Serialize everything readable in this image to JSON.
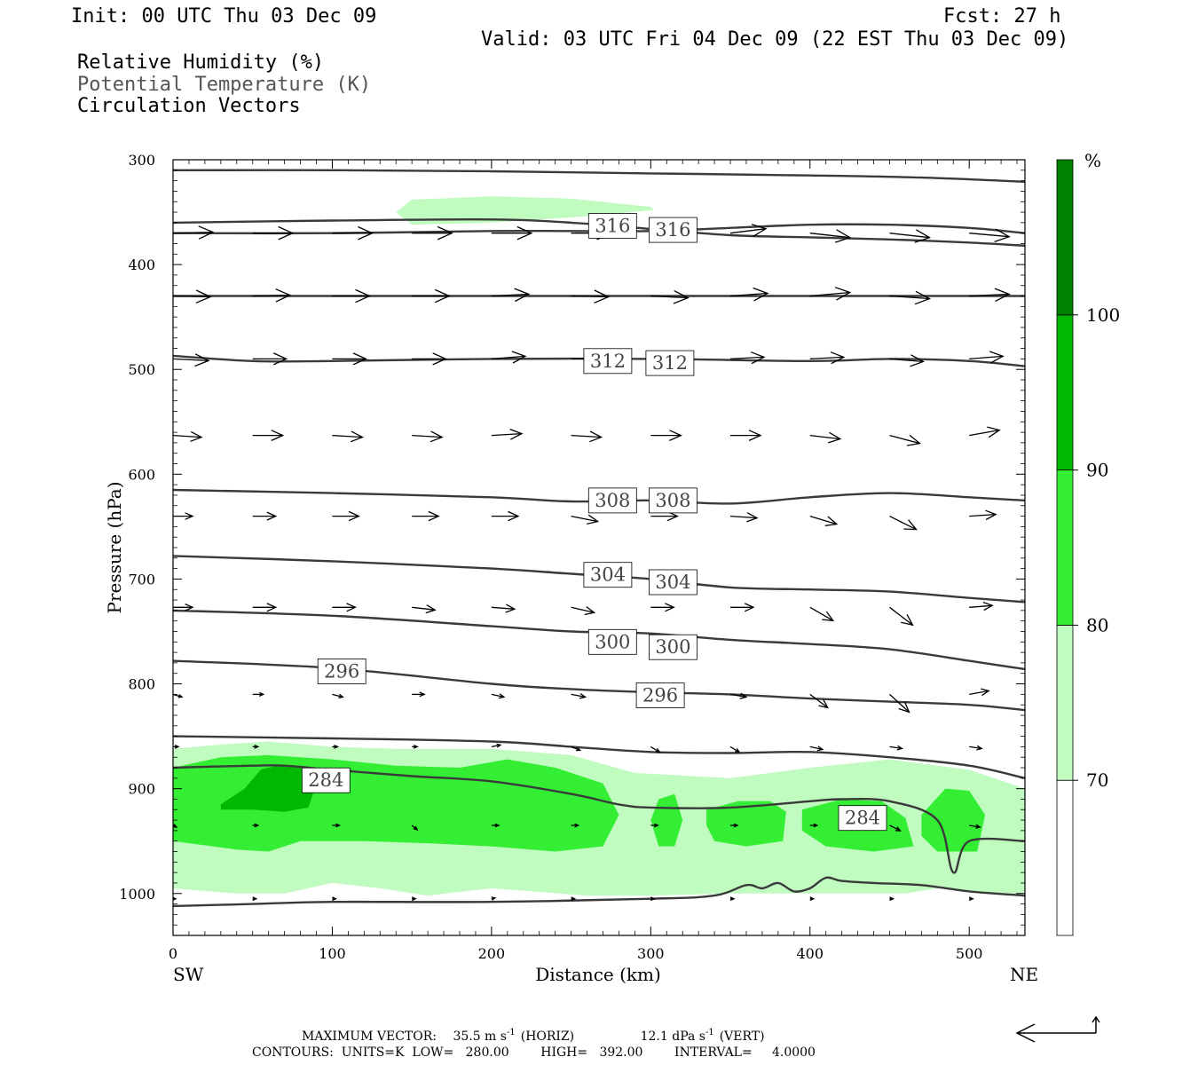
{
  "header": {
    "init": "Init: 00 UTC Thu 03 Dec 09",
    "fcst": "Fcst:   27 h",
    "valid": "Valid: 03 UTC Fri 04 Dec 09 (22 EST Thu 03 Dec 09)"
  },
  "legend": {
    "rh": "Relative Humidity (%)",
    "theta": "Potential Temperature (K)",
    "vectors": "Circulation Vectors"
  },
  "colorbar": {
    "unit": "%",
    "levels": [
      "70",
      "80",
      "90",
      "100"
    ],
    "colors": [
      "#c0fbc0",
      "#33ee33",
      "#00b800",
      "#008000"
    ]
  },
  "footer": {
    "max_vector_label": "MAXIMUM VECTOR:",
    "horiz_value": "35.5 m s",
    "horiz_exp": "-1",
    "horiz_tag": "(HORIZ)",
    "vert_value": "12.1 dPa s",
    "vert_exp": "-1",
    "vert_tag": "(VERT)",
    "contours": "CONTOURS:  UNITS=K  LOW=   280.00        HIGH=   392.00        INTERVAL=     4.0000"
  },
  "chart_data": {
    "type": "line",
    "xlabel": "Distance (km)",
    "ylabel": "Pressure (hPa)",
    "xlim": [
      0,
      535
    ],
    "ylim": [
      1040,
      300
    ],
    "x_ticks": [
      0,
      100,
      200,
      300,
      400,
      500
    ],
    "y_ticks": [
      300,
      400,
      500,
      600,
      700,
      800,
      900,
      1000
    ],
    "x_end_labels": {
      "left": "SW",
      "right": "NE"
    },
    "theta_contours": [
      {
        "x": [
          0,
          100,
          200,
          300,
          400,
          470,
          535
        ],
        "p": [
          310,
          310,
          311,
          313,
          315,
          317,
          321
        ]
      },
      {
        "x": [
          0,
          100,
          200,
          250,
          300,
          350,
          400,
          450,
          500,
          535
        ],
        "p": [
          360,
          358,
          357,
          360,
          366,
          372,
          374,
          376,
          379,
          382
        ]
      },
      {
        "x": [
          0,
          100,
          200,
          250,
          300,
          350,
          400,
          450,
          500,
          535
        ],
        "p": [
          370,
          370,
          368,
          368,
          368,
          365,
          362,
          362,
          365,
          370
        ]
      },
      {
        "x": [
          0,
          535
        ],
        "p": [
          430,
          430
        ]
      },
      {
        "x": [
          0,
          50,
          100,
          200,
          300,
          400,
          450,
          500,
          535
        ],
        "p": [
          487,
          492,
          492,
          490,
          490,
          492,
          490,
          492,
          497
        ]
      },
      {
        "x": [
          0,
          100,
          200,
          250,
          300,
          350,
          400,
          450,
          500,
          535
        ],
        "p": [
          615,
          618,
          622,
          626,
          625,
          628,
          622,
          618,
          622,
          625
        ]
      },
      {
        "x": [
          0,
          100,
          200,
          250,
          300,
          350,
          400,
          450,
          500,
          535
        ],
        "p": [
          678,
          683,
          690,
          695,
          700,
          708,
          710,
          712,
          718,
          722
        ]
      },
      {
        "x": [
          0,
          100,
          200,
          250,
          300,
          350,
          400,
          450,
          500,
          535
        ],
        "p": [
          730,
          735,
          745,
          750,
          752,
          758,
          762,
          767,
          778,
          786
        ]
      },
      {
        "x": [
          0,
          100,
          200,
          250,
          300,
          350,
          400,
          450,
          500,
          535
        ],
        "p": [
          778,
          785,
          800,
          805,
          808,
          810,
          814,
          817,
          820,
          825
        ]
      },
      {
        "x": [
          0,
          100,
          200,
          250,
          300,
          350,
          400,
          450,
          500,
          535
        ],
        "p": [
          850,
          852,
          855,
          860,
          865,
          866,
          865,
          870,
          878,
          890
        ]
      },
      {
        "x": [
          0,
          50,
          70,
          100,
          150,
          200,
          250,
          280,
          300,
          350,
          400,
          420,
          450,
          480,
          490,
          500,
          535
        ],
        "p": [
          880,
          878,
          878,
          882,
          888,
          893,
          905,
          915,
          918,
          918,
          912,
          910,
          912,
          930,
          980,
          950,
          950
        ]
      },
      {
        "x": [
          0,
          50,
          100,
          200,
          300,
          340,
          360,
          370,
          380,
          390,
          400,
          410,
          420,
          440,
          470,
          500,
          535
        ],
        "p": [
          1012,
          1010,
          1008,
          1008,
          1005,
          1002,
          992,
          995,
          990,
          998,
          995,
          985,
          988,
          990,
          992,
          998,
          1002
        ]
      }
    ],
    "theta_labels": [
      {
        "text": "316",
        "x": 276,
        "p": 363
      },
      {
        "text": "316",
        "x": 314,
        "p": 367
      },
      {
        "text": "312",
        "x": 273,
        "p": 492
      },
      {
        "text": "312",
        "x": 312,
        "p": 494
      },
      {
        "text": "308",
        "x": 276,
        "p": 625
      },
      {
        "text": "308",
        "x": 314,
        "p": 625
      },
      {
        "text": "304",
        "x": 273,
        "p": 696
      },
      {
        "text": "304",
        "x": 314,
        "p": 703
      },
      {
        "text": "300",
        "x": 276,
        "p": 760
      },
      {
        "text": "300",
        "x": 314,
        "p": 765
      },
      {
        "text": "296",
        "x": 106,
        "p": 788
      },
      {
        "text": "296",
        "x": 306,
        "p": 811
      },
      {
        "text": "284",
        "x": 96,
        "p": 892
      },
      {
        "text": "284",
        "x": 433,
        "p": 928
      }
    ],
    "rh_regions": [
      {
        "level": 70,
        "x": [
          0,
          30,
          60,
          100,
          140,
          200,
          250,
          290,
          350,
          400,
          450,
          500,
          535,
          535,
          510,
          480,
          460,
          400,
          350,
          300,
          260,
          200,
          160,
          130,
          100,
          70,
          40,
          0
        ],
        "p": [
          862,
          858,
          855,
          860,
          862,
          862,
          868,
          885,
          890,
          880,
          872,
          882,
          900,
          1000,
          1000,
          995,
          1000,
          1000,
          1000,
          1002,
          1002,
          995,
          1002,
          995,
          990,
          1000,
          1000,
          995
        ]
      },
      {
        "level": 70,
        "x": [
          140,
          150,
          200,
          250,
          300,
          302,
          250,
          200,
          150
        ],
        "p": [
          350,
          338,
          335,
          337,
          345,
          348,
          355,
          360,
          362
        ]
      },
      {
        "level": 80,
        "x": [
          0,
          30,
          60,
          100,
          140,
          180,
          210,
          240,
          270,
          280,
          270,
          240,
          200,
          160,
          120,
          80,
          60,
          40,
          0
        ],
        "p": [
          880,
          870,
          868,
          872,
          878,
          880,
          872,
          880,
          895,
          925,
          955,
          960,
          955,
          952,
          950,
          950,
          960,
          958,
          950
        ]
      },
      {
        "level": 80,
        "x": [
          305,
          315,
          320,
          315,
          305,
          300
        ],
        "p": [
          910,
          905,
          930,
          955,
          955,
          930
        ]
      },
      {
        "level": 80,
        "x": [
          335,
          355,
          375,
          385,
          383,
          360,
          340,
          335
        ],
        "p": [
          920,
          912,
          912,
          922,
          950,
          955,
          950,
          935
        ]
      },
      {
        "level": 80,
        "x": [
          395,
          420,
          445,
          460,
          465,
          440,
          410,
          395
        ],
        "p": [
          920,
          910,
          912,
          928,
          955,
          960,
          955,
          940
        ]
      },
      {
        "level": 80,
        "x": [
          470,
          485,
          500,
          510,
          505,
          480,
          470
        ],
        "p": [
          925,
          900,
          902,
          925,
          960,
          960,
          945
        ]
      },
      {
        "level": 90,
        "x": [
          30,
          45,
          55,
          65,
          80,
          90,
          85,
          70,
          50,
          30
        ],
        "p": [
          915,
          900,
          882,
          878,
          880,
          895,
          918,
          922,
          920,
          920
        ]
      }
    ],
    "vector_grid": {
      "x": [
        0,
        50,
        100,
        150,
        200,
        250,
        300,
        350,
        400,
        450,
        500
      ],
      "p": [
        370,
        430,
        490,
        563,
        640,
        727,
        810,
        860,
        935,
        1005
      ]
    },
    "vectors": [
      {
        "p": 370,
        "dx": [
          45,
          45,
          45,
          45,
          45,
          45,
          45,
          40,
          45,
          45,
          45
        ],
        "dp": [
          -1,
          0,
          0,
          0,
          0,
          0,
          0,
          -5,
          5,
          5,
          4
        ]
      },
      {
        "p": 430,
        "dx": [
          42,
          42,
          42,
          42,
          42,
          42,
          42,
          42,
          45,
          45,
          45
        ],
        "dp": [
          1,
          -1,
          0,
          0,
          -2,
          1,
          2,
          -3,
          -4,
          3,
          -2
        ]
      },
      {
        "p": 490,
        "dx": [
          40,
          38,
          38,
          38,
          38,
          38,
          38,
          38,
          38,
          38,
          38
        ],
        "dp": [
          2,
          0,
          0,
          0,
          -3,
          0,
          0,
          -2,
          -2,
          3,
          -3
        ]
      },
      {
        "p": 563,
        "dx": [
          32,
          34,
          34,
          34,
          34,
          34,
          34,
          34,
          34,
          34,
          34
        ],
        "dp": [
          2,
          0,
          2,
          2,
          -2,
          2,
          0,
          0,
          4,
          9,
          -6
        ]
      },
      {
        "p": 640,
        "dx": [
          22,
          26,
          30,
          30,
          30,
          30,
          30,
          30,
          30,
          30,
          30
        ],
        "dp": [
          0,
          0,
          0,
          0,
          0,
          6,
          0,
          2,
          9,
          15,
          -2
        ]
      },
      {
        "p": 727,
        "dx": [
          22,
          26,
          26,
          26,
          26,
          26,
          26,
          26,
          26,
          26,
          26
        ],
        "dp": [
          0,
          0,
          0,
          3,
          2,
          6,
          0,
          0,
          15,
          20,
          -2
        ]
      },
      {
        "p": 810,
        "dx": [
          10,
          12,
          12,
          14,
          14,
          16,
          16,
          18,
          20,
          22,
          22
        ],
        "dp": [
          3,
          0,
          3,
          0,
          3,
          3,
          -3,
          3,
          15,
          20,
          -4
        ]
      },
      {
        "p": 860,
        "dx": [
          6,
          6,
          6,
          6,
          10,
          10,
          10,
          10,
          14,
          14,
          14
        ],
        "dp": [
          0,
          0,
          0,
          0,
          -2,
          4,
          6,
          6,
          3,
          2,
          2
        ]
      },
      {
        "p": 935,
        "dx": [
          4,
          6,
          8,
          6,
          8,
          8,
          8,
          8,
          8,
          12,
          12
        ],
        "dp": [
          2,
          0,
          0,
          5,
          0,
          0,
          0,
          0,
          0,
          6,
          2
        ]
      },
      {
        "p": 1005,
        "dx": [
          3,
          4,
          4,
          4,
          4,
          4,
          4,
          4,
          4,
          4,
          4
        ],
        "dp": [
          0,
          0,
          0,
          0,
          -1,
          0,
          0,
          0,
          0,
          0,
          0
        ]
      }
    ]
  }
}
